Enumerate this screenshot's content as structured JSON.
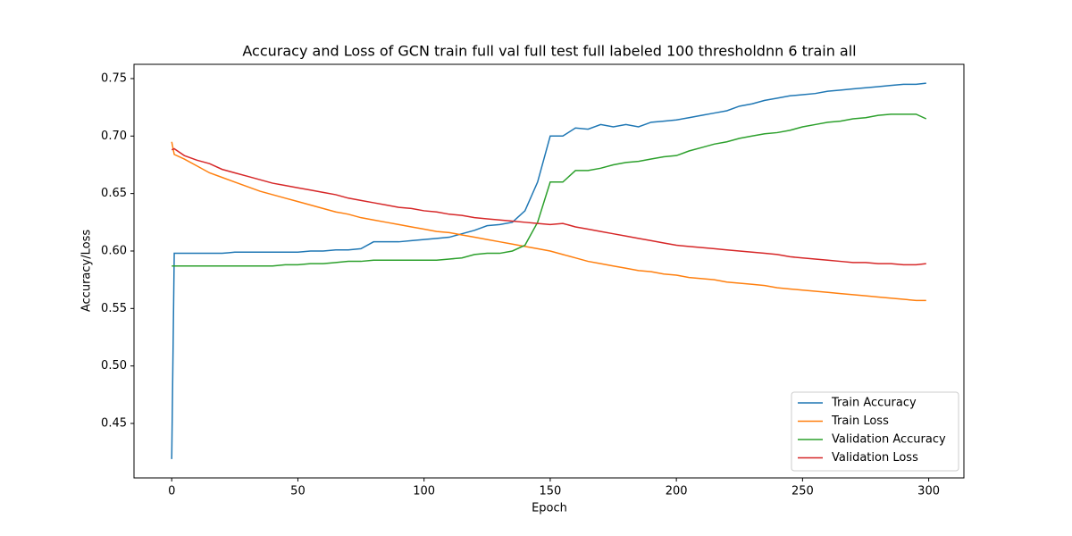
{
  "chart_data": {
    "type": "line",
    "title": "Accuracy and Loss of GCN train full val full test full labeled 100 thresholdnn 6 train all",
    "x_label": "Epoch",
    "y_label": "Accuracy/Loss",
    "x": [
      0,
      1,
      5,
      10,
      15,
      20,
      25,
      30,
      35,
      40,
      45,
      50,
      55,
      60,
      65,
      70,
      75,
      80,
      85,
      90,
      95,
      100,
      105,
      110,
      115,
      120,
      125,
      130,
      135,
      140,
      145,
      150,
      155,
      160,
      165,
      170,
      175,
      180,
      185,
      190,
      195,
      200,
      205,
      210,
      215,
      220,
      225,
      230,
      235,
      240,
      245,
      250,
      255,
      260,
      265,
      270,
      275,
      280,
      285,
      290,
      295,
      299
    ],
    "series": [
      {
        "name": "Train Accuracy",
        "color": "#1f77b4",
        "values": [
          0.419,
          0.598,
          0.598,
          0.598,
          0.598,
          0.598,
          0.599,
          0.599,
          0.599,
          0.599,
          0.599,
          0.599,
          0.6,
          0.6,
          0.601,
          0.601,
          0.602,
          0.608,
          0.608,
          0.608,
          0.609,
          0.61,
          0.611,
          0.612,
          0.615,
          0.618,
          0.622,
          0.623,
          0.625,
          0.635,
          0.66,
          0.7,
          0.7,
          0.707,
          0.706,
          0.71,
          0.708,
          0.71,
          0.708,
          0.712,
          0.713,
          0.714,
          0.716,
          0.718,
          0.72,
          0.722,
          0.726,
          0.728,
          0.731,
          0.733,
          0.735,
          0.736,
          0.737,
          0.739,
          0.74,
          0.741,
          0.742,
          0.743,
          0.744,
          0.745,
          0.745,
          0.746
        ]
      },
      {
        "name": "Train Loss",
        "color": "#ff7f0e",
        "values": [
          0.695,
          0.684,
          0.68,
          0.674,
          0.668,
          0.664,
          0.66,
          0.656,
          0.652,
          0.649,
          0.646,
          0.643,
          0.64,
          0.637,
          0.634,
          0.632,
          0.629,
          0.627,
          0.625,
          0.623,
          0.621,
          0.619,
          0.617,
          0.616,
          0.614,
          0.612,
          0.61,
          0.608,
          0.606,
          0.604,
          0.602,
          0.6,
          0.597,
          0.594,
          0.591,
          0.589,
          0.587,
          0.585,
          0.583,
          0.582,
          0.58,
          0.579,
          0.577,
          0.576,
          0.575,
          0.573,
          0.572,
          0.571,
          0.57,
          0.568,
          0.567,
          0.566,
          0.565,
          0.564,
          0.563,
          0.562,
          0.561,
          0.56,
          0.559,
          0.558,
          0.557,
          0.557
        ]
      },
      {
        "name": "Validation Accuracy",
        "color": "#2ca02c",
        "values": [
          0.587,
          0.587,
          0.587,
          0.587,
          0.587,
          0.587,
          0.587,
          0.587,
          0.587,
          0.587,
          0.588,
          0.588,
          0.589,
          0.589,
          0.59,
          0.591,
          0.591,
          0.592,
          0.592,
          0.592,
          0.592,
          0.592,
          0.592,
          0.593,
          0.594,
          0.597,
          0.598,
          0.598,
          0.6,
          0.605,
          0.625,
          0.66,
          0.66,
          0.67,
          0.67,
          0.672,
          0.675,
          0.677,
          0.678,
          0.68,
          0.682,
          0.683,
          0.687,
          0.69,
          0.693,
          0.695,
          0.698,
          0.7,
          0.702,
          0.703,
          0.705,
          0.708,
          0.71,
          0.712,
          0.713,
          0.715,
          0.716,
          0.718,
          0.719,
          0.719,
          0.719,
          0.715
        ]
      },
      {
        "name": "Validation Loss",
        "color": "#d62728",
        "values": [
          0.688,
          0.689,
          0.683,
          0.679,
          0.676,
          0.671,
          0.668,
          0.665,
          0.662,
          0.659,
          0.657,
          0.655,
          0.653,
          0.651,
          0.649,
          0.646,
          0.644,
          0.642,
          0.64,
          0.638,
          0.637,
          0.635,
          0.634,
          0.632,
          0.631,
          0.629,
          0.628,
          0.627,
          0.626,
          0.625,
          0.624,
          0.623,
          0.624,
          0.621,
          0.619,
          0.617,
          0.615,
          0.613,
          0.611,
          0.609,
          0.607,
          0.605,
          0.604,
          0.603,
          0.602,
          0.601,
          0.6,
          0.599,
          0.598,
          0.597,
          0.595,
          0.594,
          0.593,
          0.592,
          0.591,
          0.59,
          0.59,
          0.589,
          0.589,
          0.588,
          0.588,
          0.589
        ]
      }
    ],
    "xlim": [
      -14.95,
      313.95
    ],
    "xticks": [
      0,
      50,
      100,
      150,
      200,
      250,
      300
    ],
    "ylim": [
      0.4026,
      0.7624
    ],
    "yticks": [
      0.45,
      {
        "value": 0.5,
        "label": "0.50"
      },
      0.55,
      {
        "value": 0.6,
        "label": "0.60"
      },
      0.65,
      {
        "value": 0.7,
        "label": "0.70"
      },
      0.75
    ],
    "legend": "lower right"
  }
}
